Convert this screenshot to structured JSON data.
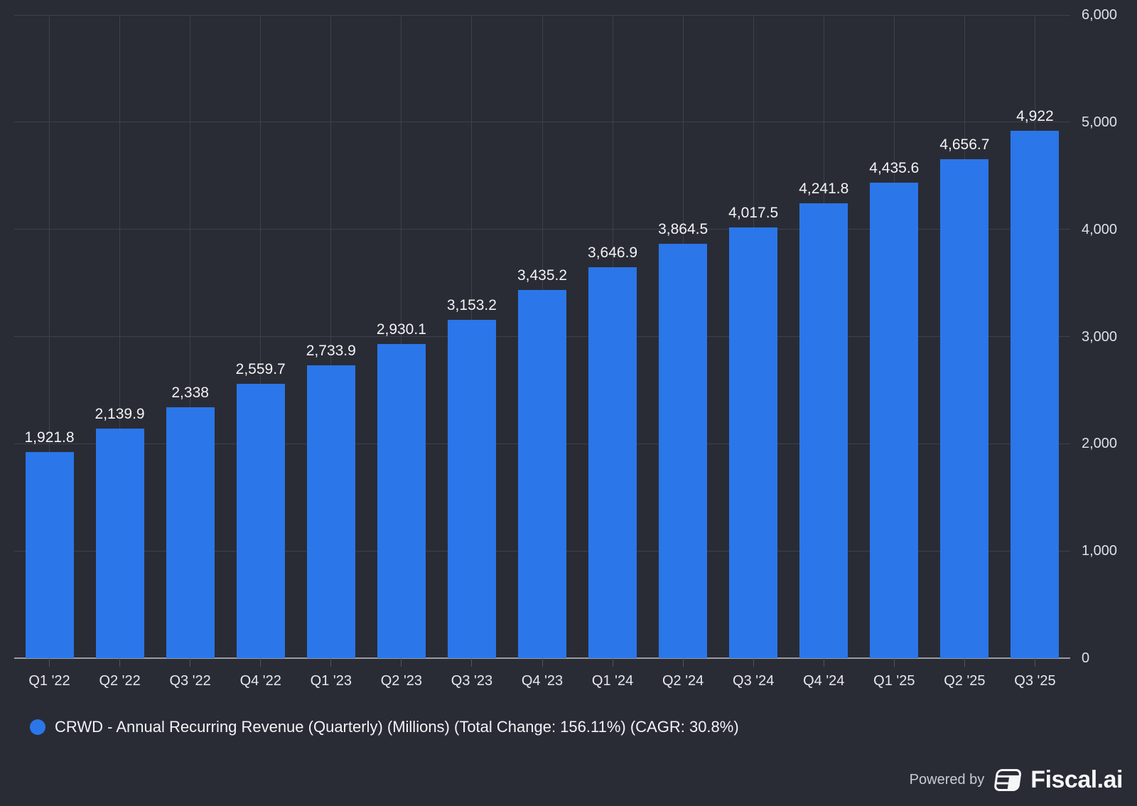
{
  "chart_data": {
    "type": "bar",
    "title": "",
    "xlabel": "",
    "ylabel": "",
    "categories": [
      "Q1 '22",
      "Q2 '22",
      "Q3 '22",
      "Q4 '22",
      "Q1 '23",
      "Q2 '23",
      "Q3 '23",
      "Q4 '23",
      "Q1 '24",
      "Q2 '24",
      "Q3 '24",
      "Q4 '24",
      "Q1 '25",
      "Q2 '25",
      "Q3 '25"
    ],
    "values": [
      1921.8,
      2139.9,
      2338,
      2559.7,
      2733.9,
      2930.1,
      3153.2,
      3435.2,
      3646.9,
      3864.5,
      4017.5,
      4241.8,
      4435.6,
      4656.7,
      4922
    ],
    "value_labels": [
      "1,921.8",
      "2,139.9",
      "2,338",
      "2,559.7",
      "2,733.9",
      "2,930.1",
      "3,153.2",
      "3,435.2",
      "3,646.9",
      "3,864.5",
      "4,017.5",
      "4,241.8",
      "4,435.6",
      "4,656.7",
      "4,922"
    ],
    "series_name": "CRWD - Annual Recurring Revenue (Quarterly) (Millions) (Total Change: 156.11%) (CAGR: 30.8%)",
    "ylim": [
      0,
      6000
    ],
    "y_ticks": [
      {
        "value": 6000,
        "label": "6,000"
      },
      {
        "value": 5000,
        "label": "5,000"
      },
      {
        "value": 4000,
        "label": "4,000"
      },
      {
        "value": 3000,
        "label": "3,000"
      },
      {
        "value": 2000,
        "label": "2,000"
      },
      {
        "value": 1000,
        "label": "1,000"
      },
      {
        "value": 0,
        "label": "0"
      }
    ],
    "grid": true,
    "y_axis_side": "right",
    "legend_position": "bottom-left"
  },
  "legend": {
    "label": "CRWD - Annual Recurring Revenue (Quarterly) (Millions) (Total Change: 156.11%) (CAGR: 30.8%)",
    "marker": "circle"
  },
  "footer": {
    "powered_by_label": "Powered by",
    "brand_name": "Fiscal.ai"
  },
  "colors": {
    "background": "#292c35",
    "gridline": "#3d414b",
    "axis_line": "#999da3",
    "tick": "#51545d",
    "bar": "#2b76e9",
    "value_label": "#f2f3f5",
    "y_axis_label": "#dde0e4",
    "x_axis_label": "#e6e8eb",
    "legend_text": "#f2f3f5",
    "powered_by_text": "#c9ccd1",
    "brand_text": "#f6f7f9"
  }
}
